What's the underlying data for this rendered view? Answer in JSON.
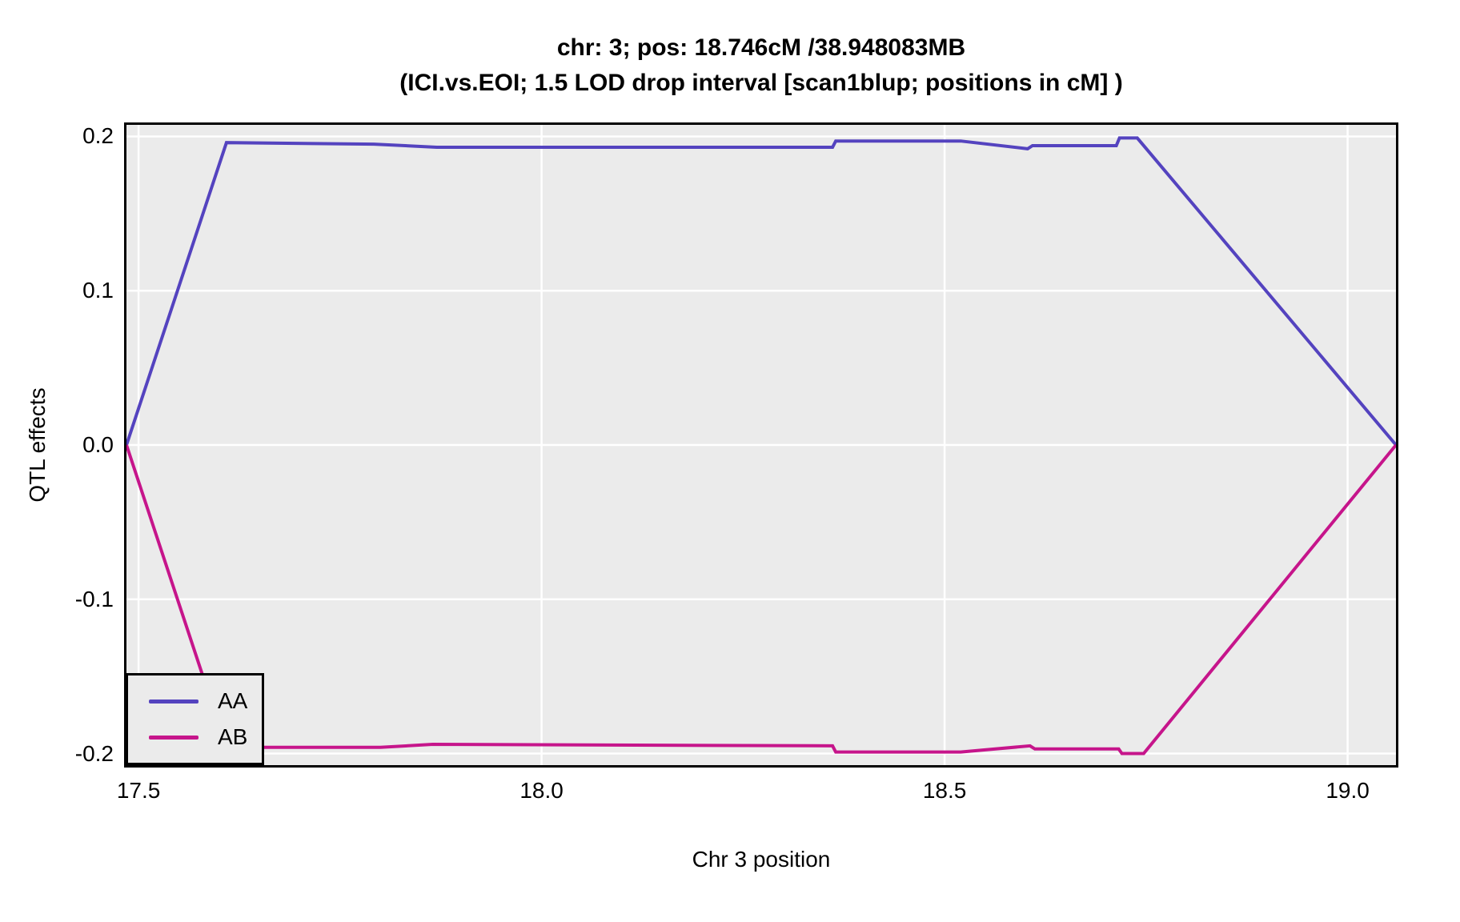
{
  "title": {
    "line1": "chr: 3; pos: 18.746cM /38.948083MB",
    "line2": "(ICI.vs.EOI; 1.5 LOD drop interval [scan1blup; positions in cM] )"
  },
  "axes": {
    "x_title": "Chr 3 position",
    "y_title": "QTL effects"
  },
  "legend": {
    "items": [
      {
        "label": "AA",
        "color": "#5443BF"
      },
      {
        "label": "AB",
        "color": "#C6158B"
      }
    ]
  },
  "colors": {
    "panel_background": "#EBEBEB",
    "gridline": "#FFFFFF",
    "panel_border": "#000000",
    "series_AA": "#5443BF",
    "series_AB": "#C6158B"
  },
  "chart_data": {
    "type": "line",
    "title": "chr: 3; pos: 18.746cM /38.948083MB",
    "subtitle": "(ICI.vs.EOI; 1.5 LOD drop interval [scan1blup; positions in cM] )",
    "xlabel": "Chr 3 position",
    "ylabel": "QTL effects",
    "xlim": [
      17.485,
      19.06
    ],
    "ylim": [
      -0.2075,
      0.2075
    ],
    "x_ticks": [
      17.5,
      18.0,
      18.5,
      19.0
    ],
    "x_tick_labels": [
      "17.5",
      "18.0",
      "18.5",
      "19.0"
    ],
    "y_ticks": [
      0.2,
      0.1,
      0.0,
      -0.1,
      -0.2
    ],
    "y_tick_labels": [
      "0.2",
      "0.1",
      "0.0",
      "-0.1",
      "-0.2"
    ],
    "grid": true,
    "legend_position": "bottom-left",
    "series": [
      {
        "name": "AA",
        "color": "#5443BF",
        "points": [
          [
            17.485,
            0.0
          ],
          [
            17.609,
            0.196
          ],
          [
            17.792,
            0.195
          ],
          [
            17.87,
            0.193
          ],
          [
            18.361,
            0.193
          ],
          [
            18.365,
            0.197
          ],
          [
            18.52,
            0.197
          ],
          [
            18.603,
            0.192
          ],
          [
            18.609,
            0.194
          ],
          [
            18.713,
            0.194
          ],
          [
            18.717,
            0.199
          ],
          [
            18.739,
            0.199
          ],
          [
            19.06,
            0.0
          ]
        ]
      },
      {
        "name": "AB",
        "color": "#C6158B",
        "points": [
          [
            17.485,
            0.0
          ],
          [
            17.609,
            -0.196
          ],
          [
            17.8,
            -0.196
          ],
          [
            17.865,
            -0.194
          ],
          [
            18.361,
            -0.195
          ],
          [
            18.365,
            -0.199
          ],
          [
            18.52,
            -0.199
          ],
          [
            18.606,
            -0.195
          ],
          [
            18.612,
            -0.197
          ],
          [
            18.716,
            -0.197
          ],
          [
            18.72,
            -0.2
          ],
          [
            18.747,
            -0.2
          ],
          [
            19.06,
            0.0
          ]
        ]
      }
    ]
  }
}
